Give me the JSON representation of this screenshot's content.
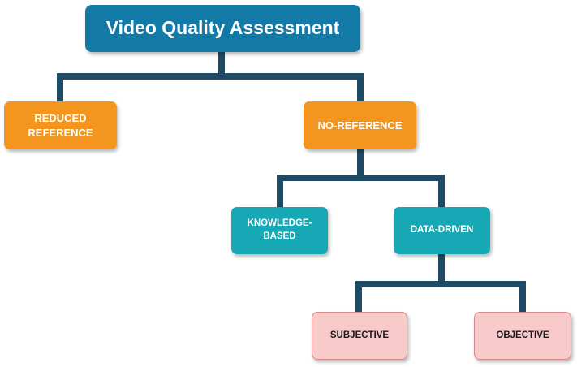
{
  "diagram": {
    "title": "Video Quality Assessment",
    "nodes": {
      "reduced_reference": "REDUCED\nREFERENCE",
      "no_reference": "NO-REFERENCE",
      "knowledge_based": "KNOWLEDGE-\nBASED",
      "data_driven": "DATA-DRIVEN",
      "subjective": "SUBJECTIVE",
      "objective": "OBJECTIVE"
    },
    "colors": {
      "root": "#1379a6",
      "level1": "#f2961f",
      "level2": "#16a8b4",
      "level3": "#f8caca",
      "connector": "#1f4a63"
    }
  }
}
